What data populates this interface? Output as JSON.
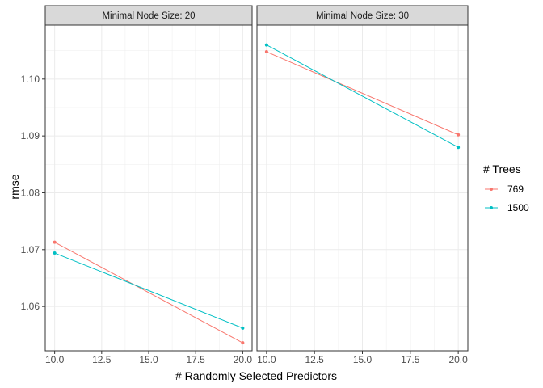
{
  "chart_data": {
    "type": "line",
    "xlabel": "# Randomly Selected Predictors",
    "ylabel": "rmse",
    "xlim": [
      9.5,
      20.5
    ],
    "ylim": [
      1.0522,
      1.1095
    ],
    "x_ticks": [
      10.0,
      12.5,
      15.0,
      17.5,
      20.0
    ],
    "x_tick_labels": [
      "10.0",
      "12.5",
      "15.0",
      "17.5",
      "20.0"
    ],
    "y_ticks": [
      1.06,
      1.07,
      1.08,
      1.09,
      1.1
    ],
    "y_tick_labels": [
      "1.06",
      "1.07",
      "1.08",
      "1.09",
      "1.10"
    ],
    "grid": true,
    "legend": {
      "title": "# Trees",
      "position": "right",
      "entries": [
        {
          "label": "769",
          "color": "#F8766D"
        },
        {
          "label": "1500",
          "color": "#00BFC4"
        }
      ]
    },
    "panels": [
      {
        "strip": "Minimal Node Size: 20",
        "series": [
          {
            "name": "769",
            "color": "#F8766D",
            "x": [
              10,
              20
            ],
            "y": [
              1.0713,
              1.0536
            ]
          },
          {
            "name": "1500",
            "color": "#00BFC4",
            "x": [
              10,
              20
            ],
            "y": [
              1.0694,
              1.0562
            ]
          }
        ]
      },
      {
        "strip": "Minimal Node Size: 30",
        "series": [
          {
            "name": "769",
            "color": "#F8766D",
            "x": [
              10,
              20
            ],
            "y": [
              1.1048,
              1.0902
            ]
          },
          {
            "name": "1500",
            "color": "#00BFC4",
            "x": [
              10,
              20
            ],
            "y": [
              1.106,
              1.088
            ]
          }
        ]
      }
    ]
  }
}
